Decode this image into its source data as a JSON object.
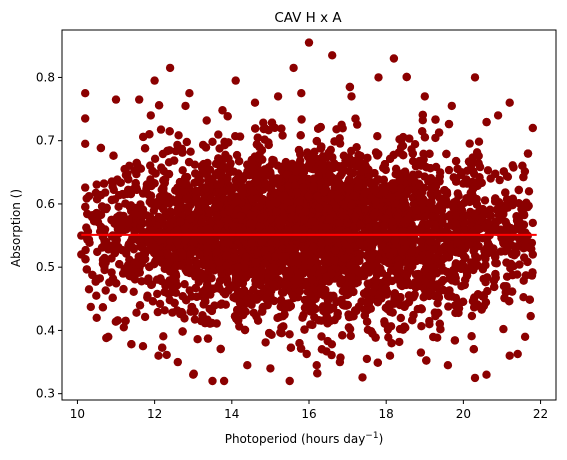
{
  "chart_data": {
    "type": "scatter",
    "title": "CAV H x A",
    "xlabel_main": "Photoperiod (hours day",
    "xlabel_sup": "−1",
    "xlabel_close": ")",
    "ylabel": "Absorption ()",
    "xlim": [
      9.6,
      22.4
    ],
    "ylim": [
      0.29,
      0.875
    ],
    "x_ticks": [
      10,
      12,
      14,
      16,
      18,
      20,
      22
    ],
    "y_ticks": [
      0.3,
      0.4,
      0.5,
      0.6,
      0.7,
      0.8
    ],
    "x_tick_labels": [
      "10",
      "12",
      "14",
      "16",
      "18",
      "20",
      "22"
    ],
    "y_tick_labels": [
      "0.3",
      "0.4",
      "0.5",
      "0.6",
      "0.7",
      "0.8"
    ],
    "grid": false,
    "point_color": "#8b0000",
    "fit_line_color": "#ff0000",
    "points": [
      [
        10.2,
        0.775
      ],
      [
        10.2,
        0.735
      ],
      [
        10.2,
        0.695
      ],
      [
        11.0,
        0.765
      ],
      [
        11.6,
        0.765
      ],
      [
        12.0,
        0.795
      ],
      [
        12.4,
        0.815
      ],
      [
        12.9,
        0.775
      ],
      [
        14.1,
        0.795
      ],
      [
        15.6,
        0.815
      ],
      [
        15.8,
        0.775
      ],
      [
        16.0,
        0.855
      ],
      [
        16.6,
        0.835
      ],
      [
        18.2,
        0.83
      ],
      [
        17.8,
        0.8
      ],
      [
        20.3,
        0.8
      ],
      [
        21.2,
        0.76
      ],
      [
        21.8,
        0.72
      ],
      [
        20.9,
        0.74
      ],
      [
        11.9,
        0.74
      ],
      [
        12.8,
        0.755
      ],
      [
        14.6,
        0.76
      ],
      [
        15.2,
        0.77
      ],
      [
        17.1,
        0.77
      ],
      [
        19.0,
        0.77
      ],
      [
        19.7,
        0.755
      ],
      [
        10.3,
        0.465
      ],
      [
        10.5,
        0.42
      ],
      [
        10.8,
        0.39
      ],
      [
        11.2,
        0.405
      ],
      [
        11.7,
        0.375
      ],
      [
        12.1,
        0.36
      ],
      [
        12.6,
        0.35
      ],
      [
        13.0,
        0.33
      ],
      [
        13.5,
        0.32
      ],
      [
        13.8,
        0.32
      ],
      [
        14.4,
        0.345
      ],
      [
        15.0,
        0.34
      ],
      [
        15.5,
        0.32
      ],
      [
        16.2,
        0.345
      ],
      [
        16.8,
        0.35
      ],
      [
        17.5,
        0.355
      ],
      [
        18.1,
        0.36
      ],
      [
        18.9,
        0.365
      ],
      [
        19.6,
        0.345
      ],
      [
        20.3,
        0.325
      ],
      [
        20.6,
        0.33
      ],
      [
        21.2,
        0.36
      ],
      [
        21.6,
        0.39
      ],
      [
        21.8,
        0.52
      ],
      [
        21.8,
        0.57
      ],
      [
        21.7,
        0.62
      ],
      [
        10.1,
        0.52
      ],
      [
        10.1,
        0.55
      ]
    ],
    "cloud": {
      "x_center": 16.0,
      "x_spread": 2.9,
      "y_center": 0.552,
      "y_spread": 0.065,
      "x_range": [
        10.2,
        21.8
      ],
      "count": 6000
    },
    "fit_line": {
      "x": [
        10.1,
        21.9
      ],
      "y": [
        0.551,
        0.551
      ]
    }
  }
}
